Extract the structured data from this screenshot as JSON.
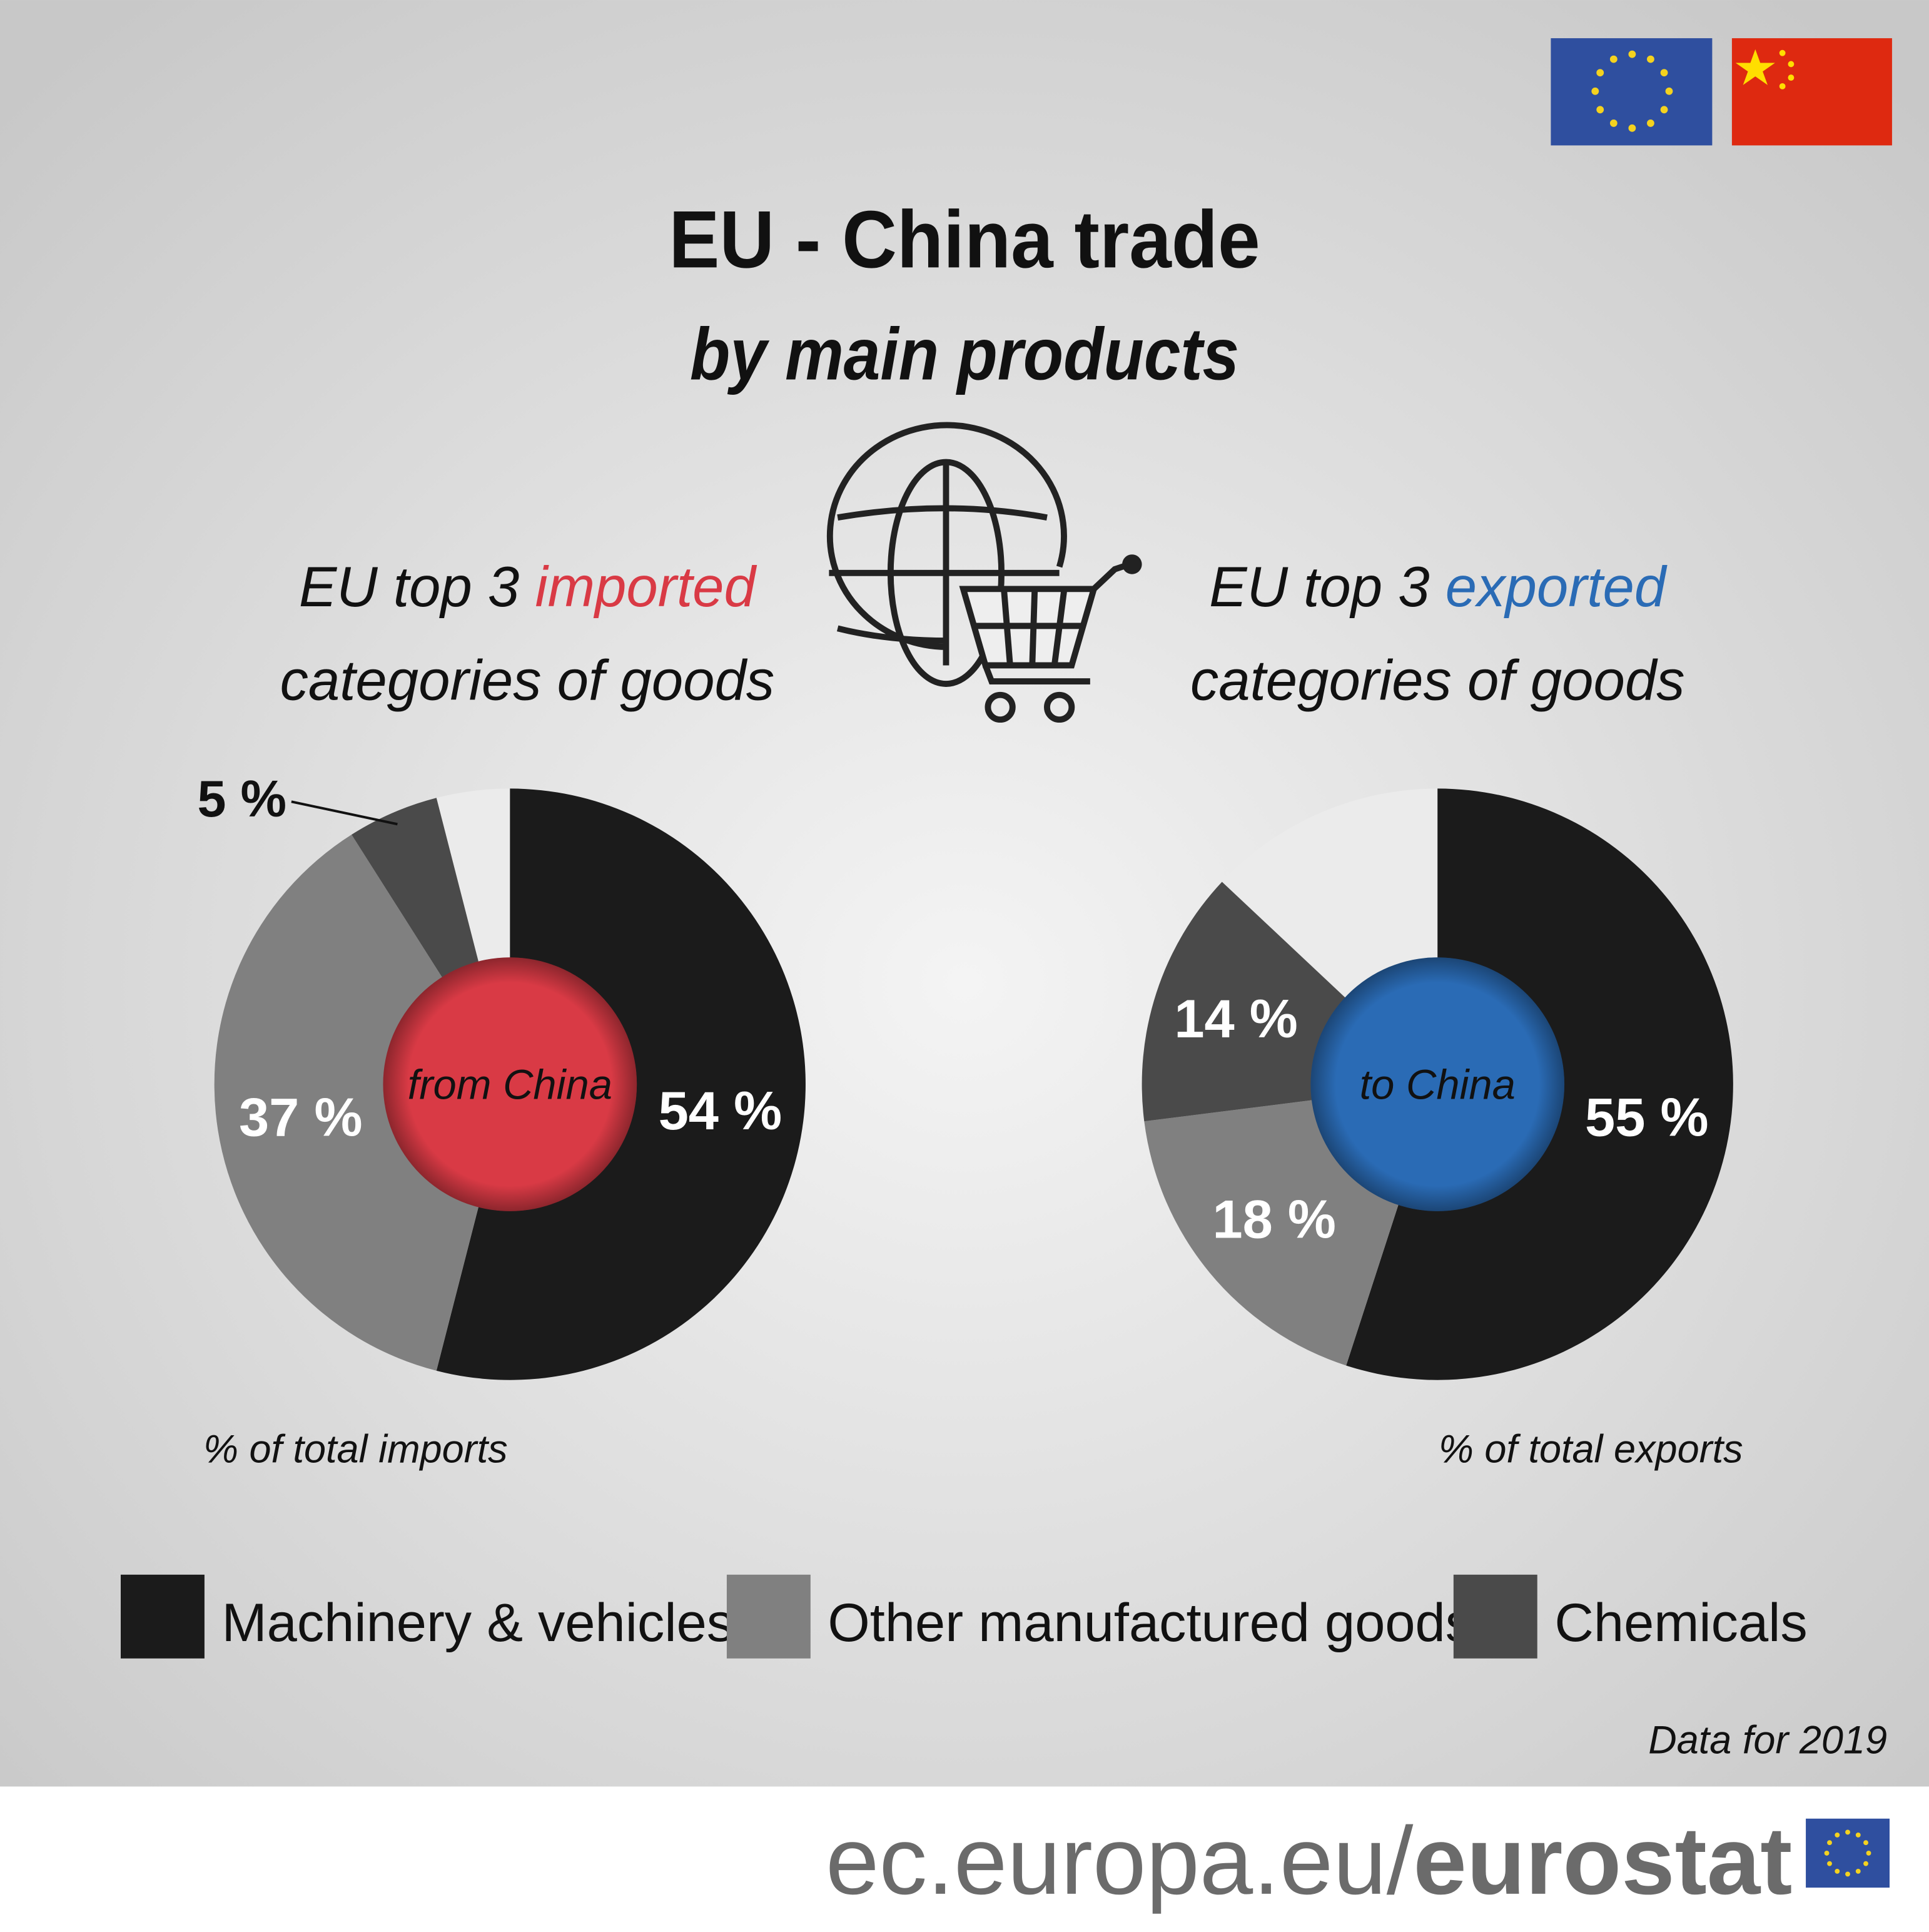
{
  "header": {
    "title": "EU - China trade",
    "subtitle": "by main products"
  },
  "chart_data": [
    {
      "type": "pie",
      "title": [
        "EU top 3",
        "imported",
        "categories of goods"
      ],
      "title_color": "#d93a45",
      "center_label": "from China",
      "center_color": "#d93a45",
      "note": "% of total imports",
      "categories": [
        "Machinery & vehicles",
        "Other manufactured goods",
        "Chemicals"
      ],
      "values": [
        54,
        37,
        5
      ],
      "value_labels": [
        "54 %",
        "37 %",
        "5 %"
      ],
      "colors": [
        "#1b1b1b",
        "#808080",
        "#4a4a4a"
      ]
    },
    {
      "type": "pie",
      "title": [
        "EU top 3",
        "exported",
        "categories of goods"
      ],
      "title_color": "#2a6bb5",
      "center_label": "to China",
      "center_color": "#2a6bb5",
      "note": "% of total exports",
      "categories": [
        "Machinery & vehicles",
        "Other manufactured goods",
        "Chemicals"
      ],
      "values": [
        55,
        18,
        14
      ],
      "value_labels": [
        "55 %",
        "18 %",
        "14 %"
      ],
      "colors": [
        "#1b1b1b",
        "#808080",
        "#4a4a4a"
      ]
    }
  ],
  "source": "Data for 2019",
  "footer": {
    "url": "ec.europa.eu/",
    "brand": "eurostat"
  }
}
